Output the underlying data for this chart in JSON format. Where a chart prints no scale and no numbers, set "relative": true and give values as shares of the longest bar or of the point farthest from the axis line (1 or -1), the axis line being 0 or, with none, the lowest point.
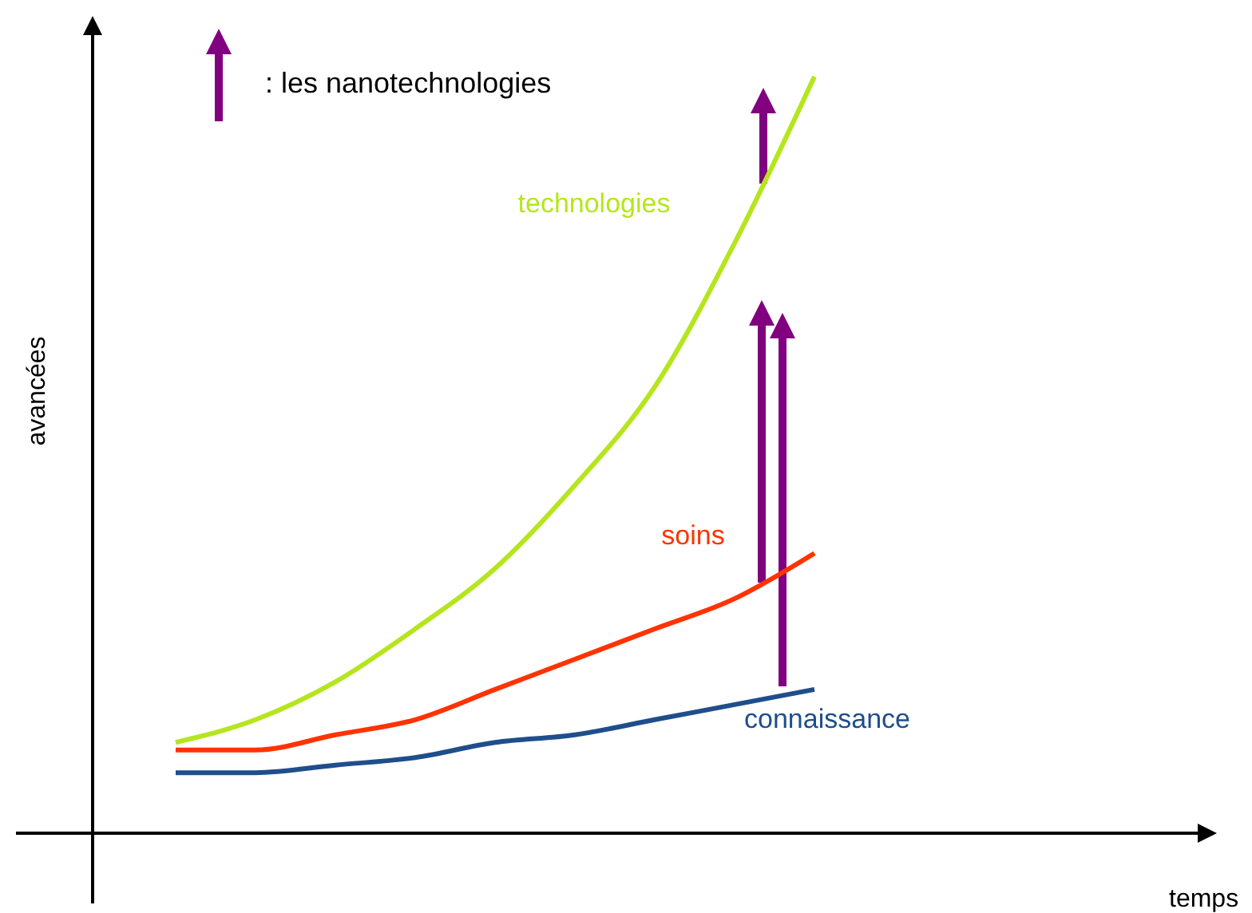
{
  "chart_data": {
    "type": "line",
    "relative": true,
    "ylabel": "avancées",
    "categories": [
      null,
      null,
      null,
      null,
      null,
      null,
      null,
      null,
      null
    ],
    "series": [
      {
        "name": "technologies",
        "color": "#b5e61d",
        "values": [
          0.12,
          0.15,
          0.2,
          0.27,
          0.35,
          0.46,
          0.59,
          0.78,
          1
        ]
      },
      {
        "name": "soins",
        "color": "#ff3300",
        "values": [
          0.11,
          0.11,
          0.13,
          0.15,
          0.19,
          0.23,
          0.27,
          0.31,
          0.37
        ]
      },
      {
        "name": "connaissance",
        "color": "#1f4e8c",
        "values": [
          0.08,
          0.08,
          0.09,
          0.1,
          0.12,
          0.13,
          0.15,
          0.17,
          0.19
        ]
      }
    ],
    "annotations": [
      ": les nanotechnologies",
      "temps"
    ],
    "marker": "none",
    "line_style": "solid",
    "grid": false,
    "legend": false
  }
}
